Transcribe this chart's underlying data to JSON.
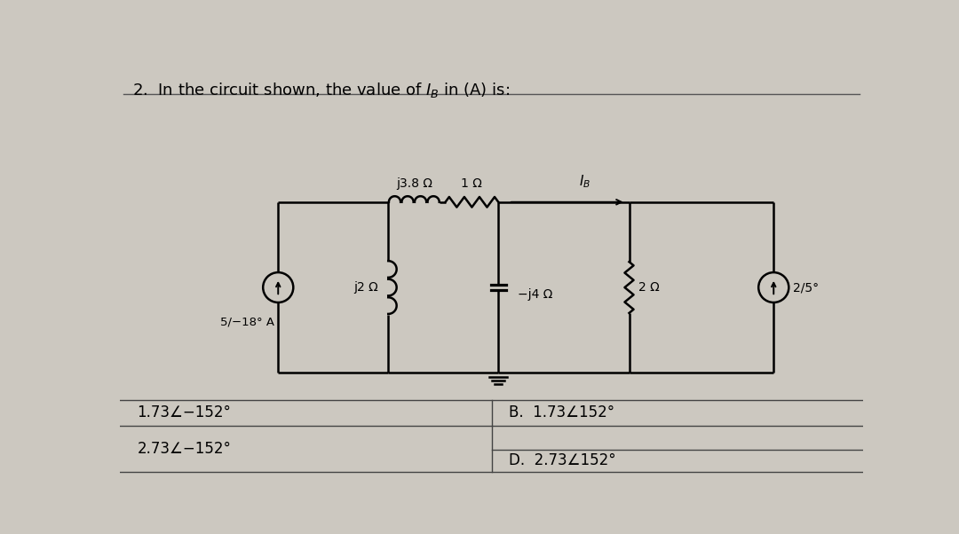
{
  "title": "2.  In the circuit shown, the value of $I_B$ in (A) is:",
  "bg_color": "#ccc8c0",
  "answer_A": "1.73∠−152°",
  "answer_C": "2.73∠−152°",
  "answer_B": "B.  1.73∠152°",
  "answer_D": "D.  2.73∠152°",
  "source_label": "5/−18° A",
  "source2_label": "2/5°",
  "z1_label": "j3.8 Ω",
  "z2_label": "1 Ω",
  "z3_label": "−j4 Ω",
  "z4_label": "j2 Ω",
  "z5_label": "2 Ω",
  "IB_label": "$I_B$",
  "lw": 1.8,
  "fig_w": 10.8,
  "fig_h": 6.02
}
